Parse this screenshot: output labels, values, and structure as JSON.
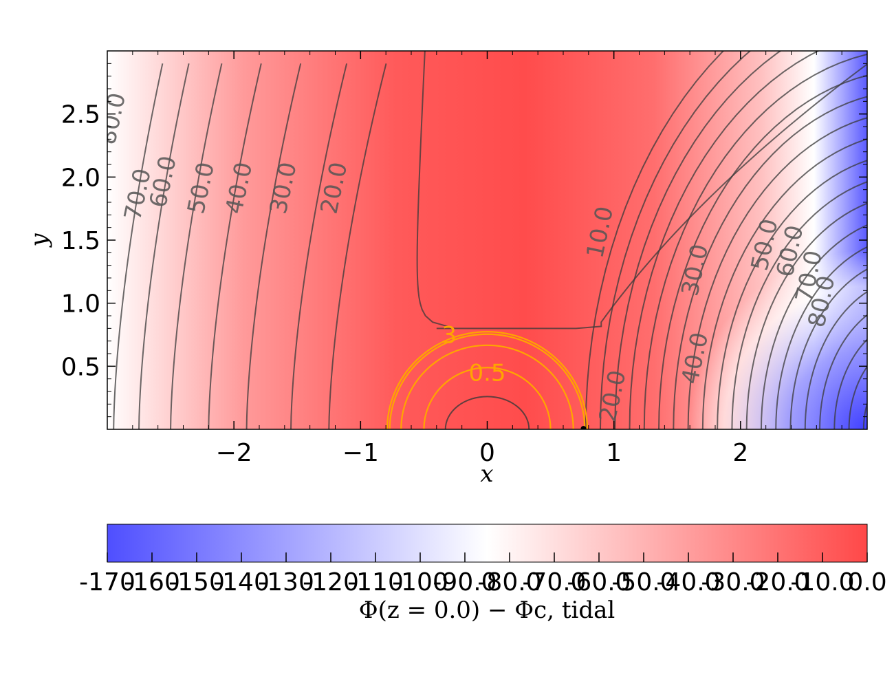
{
  "chart_data": {
    "type": "contour",
    "xlabel": "x",
    "ylabel": "y",
    "xlim": [
      -3.0,
      3.0
    ],
    "ylim": [
      0.0,
      3.0
    ],
    "x_ticks": [
      -2,
      -1,
      0,
      1,
      2
    ],
    "x_tick_labels": [
      "−2",
      "−1",
      "0",
      "1",
      "2"
    ],
    "y_ticks": [
      0.5,
      1.0,
      1.5,
      2.0,
      2.5
    ],
    "y_tick_labels": [
      "0.5",
      "1.0",
      "1.5",
      "2.0",
      "2.5"
    ],
    "colormap": "bwr (blue-white-red)",
    "colors": {
      "low": "#4f4fff",
      "mid": "#ffffff",
      "high": "#ff4848",
      "contour": "#444444",
      "inner_contour": "#ffa500"
    },
    "contour_labels": [
      {
        "text": "80.0",
        "x": -2.9,
        "y": 2.45
      },
      {
        "text": "70.0",
        "x": -2.7,
        "y": 1.85
      },
      {
        "text": "60.0",
        "x": -2.5,
        "y": 1.95
      },
      {
        "text": "50.0",
        "x": -2.2,
        "y": 1.9
      },
      {
        "text": "40.0",
        "x": -1.9,
        "y": 1.9
      },
      {
        "text": "30.0",
        "x": -1.55,
        "y": 1.9
      },
      {
        "text": "20.0",
        "x": -1.15,
        "y": 1.9
      },
      {
        "text": "10.0",
        "x": 0.95,
        "y": 1.55
      },
      {
        "text": "30.0",
        "x": 1.7,
        "y": 1.25
      },
      {
        "text": "40.0",
        "x": 1.7,
        "y": 0.55
      },
      {
        "text": "20.0",
        "x": 1.05,
        "y": 0.25
      },
      {
        "text": "50.0",
        "x": 2.25,
        "y": 1.45
      },
      {
        "text": "60.0",
        "x": 2.45,
        "y": 1.4
      },
      {
        "text": "70.0",
        "x": 2.6,
        "y": 1.2
      },
      {
        "text": "80.0",
        "x": 2.7,
        "y": 1.0
      }
    ],
    "inner_contour_labels": [
      {
        "text": "0.5",
        "x": 0.0,
        "y": 0.45
      },
      {
        "text": "3",
        "x": -0.3,
        "y": 0.75
      }
    ],
    "colorbar": {
      "title": "Φ(z = 0.0) − Φc, tidal",
      "range": [
        -170.0,
        0.0
      ],
      "tick_values": [
        -170,
        -160,
        -150,
        -140,
        -130,
        -120,
        -110,
        -100,
        -90,
        -80,
        -70,
        -60,
        -50,
        -40,
        -30,
        -20,
        -10,
        0
      ],
      "tick_labels": [
        "-170",
        "-160",
        "-150",
        "-140",
        "-130",
        "-120",
        "-110",
        "-100",
        "-90.0",
        "-80.0",
        "-70.0",
        "-60.0",
        "-50.0",
        "-40.0",
        "-30.0",
        "-20.0",
        "-10.0",
        "0.0"
      ]
    }
  }
}
